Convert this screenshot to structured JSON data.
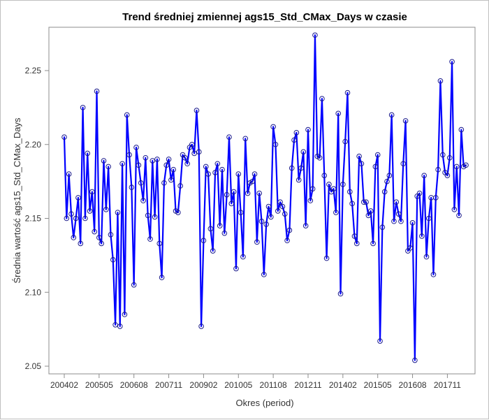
{
  "chart_data": {
    "type": "line",
    "title": "Trend średniej zmiennej ags15_Std_CMax_Days w czasie",
    "xlabel": "Okres (period)",
    "ylabel": "Średnia wartość ags15_Std_CMax_Days",
    "ylim": [
      2.04,
      2.28
    ],
    "yticks": [
      2.05,
      2.1,
      2.15,
      2.2,
      2.25
    ],
    "ytick_labels": [
      "2.05",
      "2.10",
      "2.15",
      "2.20",
      "2.25"
    ],
    "xticks": [
      "200402",
      "200505",
      "200608",
      "200711",
      "200902",
      "201005",
      "201108",
      "201211",
      "201402",
      "201505",
      "201608",
      "201711"
    ],
    "grid": false,
    "marker": "circle",
    "line_color": "#0000ff",
    "series": [
      {
        "x": [
          "200402",
          "200403",
          "200404",
          "200405",
          "200406",
          "200407",
          "200408",
          "200409",
          "200410",
          "200411",
          "200412",
          "200501",
          "200502",
          "200503",
          "200504",
          "200505",
          "200506",
          "200507",
          "200508",
          "200509",
          "200510",
          "200511",
          "200512",
          "200601",
          "200602",
          "200603",
          "200604",
          "200605",
          "200606",
          "200607",
          "200608",
          "200609",
          "200610",
          "200611",
          "200612",
          "200701",
          "200702",
          "200703",
          "200704",
          "200705",
          "200706",
          "200707",
          "200708",
          "200709",
          "200710",
          "200711",
          "200712",
          "200801",
          "200802",
          "200803",
          "200804",
          "200805",
          "200806",
          "200807",
          "200808",
          "200809",
          "200810",
          "200811",
          "200812",
          "200901",
          "200902",
          "200903",
          "200904",
          "200905",
          "200906",
          "200907",
          "200908",
          "200909",
          "200910",
          "200911",
          "200912",
          "201001",
          "201002",
          "201003",
          "201004",
          "201005",
          "201006",
          "201007",
          "201008",
          "201009",
          "201010",
          "201011",
          "201012",
          "201101",
          "201102",
          "201103",
          "201104",
          "201105",
          "201106",
          "201107",
          "201108",
          "201109",
          "201110",
          "201111",
          "201112",
          "201201",
          "201202",
          "201203",
          "201204",
          "201205",
          "201206",
          "201207",
          "201208",
          "201209",
          "201210",
          "201211",
          "201212",
          "201301",
          "201302",
          "201303",
          "201304",
          "201305",
          "201306",
          "201307",
          "201308",
          "201309",
          "201310",
          "201311",
          "201312",
          "201401",
          "201402",
          "201403",
          "201404",
          "201405",
          "201406",
          "201407",
          "201408",
          "201409",
          "201410",
          "201411",
          "201412",
          "201501",
          "201502",
          "201503",
          "201504",
          "201505",
          "201506",
          "201507",
          "201508",
          "201509",
          "201510",
          "201511",
          "201512",
          "201601",
          "201602",
          "201603",
          "201604",
          "201605",
          "201606",
          "201607",
          "201608",
          "201609",
          "201610",
          "201611",
          "201612",
          "201701",
          "201702",
          "201703",
          "201704",
          "201705",
          "201706",
          "201707",
          "201708",
          "201709",
          "201710",
          "201711",
          "201712",
          "201801",
          "201802",
          "201803",
          "201804",
          "201805",
          "201806",
          "201807"
        ],
        "values": [
          2.205,
          2.15,
          2.18,
          2.153,
          2.137,
          2.15,
          2.164,
          2.133,
          2.225,
          2.15,
          2.194,
          2.155,
          2.168,
          2.141,
          2.236,
          2.137,
          2.133,
          2.189,
          2.156,
          2.185,
          2.139,
          2.122,
          2.078,
          2.154,
          2.077,
          2.187,
          2.085,
          2.22,
          2.193,
          2.171,
          2.105,
          2.198,
          2.186,
          2.174,
          2.162,
          2.191,
          2.152,
          2.136,
          2.189,
          2.151,
          2.19,
          2.133,
          2.11,
          2.174,
          2.186,
          2.19,
          2.176,
          2.183,
          2.155,
          2.154,
          2.172,
          2.193,
          2.191,
          2.187,
          2.198,
          2.2,
          2.194,
          2.223,
          2.195,
          2.077,
          2.135,
          2.185,
          2.18,
          2.143,
          2.128,
          2.181,
          2.187,
          2.145,
          2.183,
          2.14,
          2.166,
          2.205,
          2.16,
          2.168,
          2.116,
          2.18,
          2.154,
          2.124,
          2.204,
          2.167,
          2.174,
          2.175,
          2.18,
          2.134,
          2.167,
          2.148,
          2.112,
          2.146,
          2.158,
          2.151,
          2.212,
          2.2,
          2.155,
          2.161,
          2.158,
          2.153,
          2.135,
          2.142,
          2.184,
          2.203,
          2.208,
          2.176,
          2.184,
          2.195,
          2.145,
          2.21,
          2.162,
          2.17,
          2.274,
          2.192,
          2.191,
          2.231,
          2.179,
          2.123,
          2.173,
          2.168,
          2.17,
          2.154,
          2.221,
          2.099,
          2.173,
          2.202,
          2.235,
          2.168,
          2.16,
          2.138,
          2.133,
          2.192,
          2.187,
          2.161,
          2.161,
          2.152,
          2.155,
          2.133,
          2.185,
          2.193,
          2.067,
          2.144,
          2.168,
          2.175,
          2.179,
          2.22,
          2.148,
          2.161,
          2.153,
          2.148,
          2.187,
          2.216,
          2.128,
          2.13,
          2.147,
          2.054,
          2.165,
          2.167,
          2.138,
          2.179,
          2.124,
          2.15,
          2.164,
          2.112,
          2.164,
          2.183,
          2.243,
          2.193,
          2.181,
          2.179,
          2.191,
          2.256,
          2.156,
          2.185,
          2.152,
          2.21,
          2.185,
          2.186
        ]
      }
    ]
  }
}
